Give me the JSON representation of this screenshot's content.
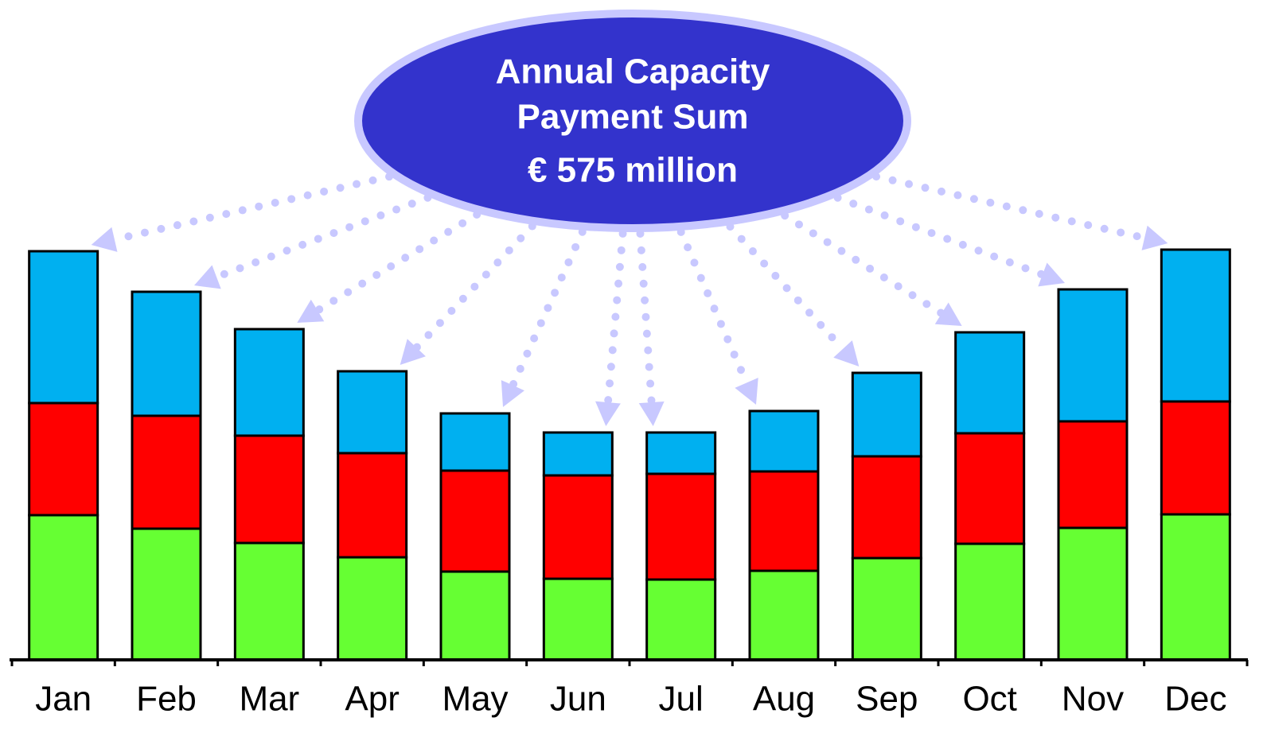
{
  "chart_data": {
    "type": "stacked_bar",
    "annotation": [
      "Annual Capacity",
      "Payment Sum",
      "€ 575 million"
    ],
    "categories": [
      "Jan",
      "Feb",
      "Mar",
      "Apr",
      "May",
      "Jun",
      "Jul",
      "Aug",
      "Sep",
      "Oct",
      "Nov",
      "Dec"
    ],
    "series": [
      {
        "color": "#66ff33",
        "values": [
          182,
          165,
          147,
          129,
          111,
          102,
          101,
          112,
          128,
          146,
          166,
          183
        ]
      },
      {
        "color": "#ff0000",
        "values": [
          141,
          142,
          135,
          131,
          127,
          130,
          133,
          125,
          128,
          139,
          134,
          142
        ]
      },
      {
        "color": "#00b0f0",
        "values": [
          191,
          156,
          134,
          103,
          72,
          54,
          52,
          76,
          105,
          127,
          166,
          191
        ]
      }
    ],
    "ylim": [
      0,
      530
    ]
  }
}
